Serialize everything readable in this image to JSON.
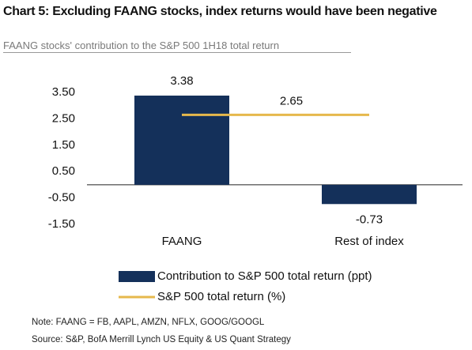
{
  "chart_data": {
    "type": "bar",
    "title": "Chart 5: Excluding FAANG stocks, index returns would have been negative",
    "subtitle": "FAANG stocks' contribution to the S&P 500 1H18 total return",
    "categories": [
      "FAANG",
      "Rest of index"
    ],
    "series": [
      {
        "name": "Contribution to S&P 500 total return (ppt)",
        "type": "bar",
        "color": "#14305a",
        "values": [
          3.38,
          -0.73
        ]
      },
      {
        "name": "S&P 500 total return (%)",
        "type": "line",
        "color": "#e6b84c",
        "values": [
          2.65,
          2.65
        ]
      }
    ],
    "ylim": [
      -1.5,
      3.5
    ],
    "yticks": [
      {
        "value": 3.5,
        "label": "3.50"
      },
      {
        "value": 2.5,
        "label": "2.50"
      },
      {
        "value": 1.5,
        "label": "1.50"
      },
      {
        "value": 0.5,
        "label": "0.50"
      },
      {
        "value": -0.5,
        "label": "-0.50"
      },
      {
        "value": -1.5,
        "label": "-1.50"
      }
    ],
    "legend": "bottom",
    "note": "Note: FAANG = FB, AAPL, AMZN, NFLX,  GOOG/GOOGL",
    "source": "Source: S&P,  BofA Merrill Lynch US Equity & US Quant Strategy"
  }
}
